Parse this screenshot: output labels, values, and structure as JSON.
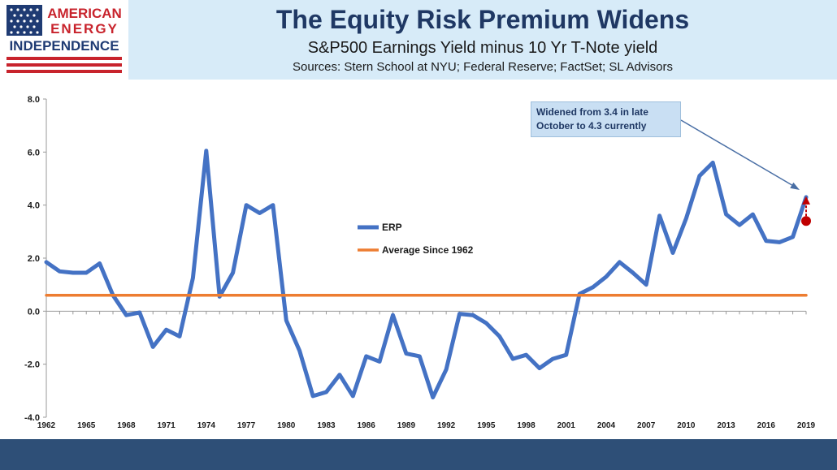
{
  "logo": {
    "line1": "AMERICAN",
    "line2": "ENERGY",
    "line3": "INDEPENDENCE",
    "flag_colors": {
      "blue": "#1f3b73",
      "red": "#c8232c"
    }
  },
  "header": {
    "title": "The Equity Risk Premium Widens",
    "subtitle": "S&P500 Earnings Yield minus 10 Yr T-Note yield",
    "sources": "Sources: Stern School at NYU; Federal Reserve; FactSet; SL Advisors"
  },
  "annotation": {
    "text": "Widened from 3.4 in late October to 4.3 currently"
  },
  "chart_data": {
    "type": "line",
    "x": [
      1962,
      1963,
      1964,
      1965,
      1966,
      1967,
      1968,
      1969,
      1970,
      1971,
      1972,
      1973,
      1974,
      1975,
      1976,
      1977,
      1978,
      1979,
      1980,
      1981,
      1982,
      1983,
      1984,
      1985,
      1986,
      1987,
      1988,
      1989,
      1990,
      1991,
      1992,
      1993,
      1994,
      1995,
      1996,
      1997,
      1998,
      1999,
      2000,
      2001,
      2002,
      2003,
      2004,
      2005,
      2006,
      2007,
      2008,
      2009,
      2010,
      2011,
      2012,
      2013,
      2014,
      2015,
      2016,
      2017,
      2018,
      2019
    ],
    "series": [
      {
        "name": "ERP",
        "color": "#4472c4",
        "values": [
          1.85,
          1.5,
          1.45,
          1.45,
          1.8,
          0.6,
          -0.15,
          -0.05,
          -1.35,
          -0.7,
          -0.95,
          1.25,
          6.05,
          0.55,
          1.45,
          4.0,
          3.7,
          4.0,
          -0.35,
          -1.5,
          -3.2,
          -3.05,
          -2.4,
          -3.2,
          -1.7,
          -1.9,
          -0.15,
          -1.6,
          -1.7,
          -3.25,
          -2.2,
          -0.1,
          -0.15,
          -0.45,
          -0.95,
          -1.8,
          -1.65,
          -2.15,
          -1.8,
          -1.65,
          0.65,
          0.9,
          1.3,
          1.85,
          1.45,
          1.0,
          3.6,
          2.2,
          3.5,
          5.1,
          5.6,
          3.65,
          3.25,
          3.65,
          2.65,
          2.6,
          2.8,
          4.3
        ]
      },
      {
        "name": "Average Since 1962",
        "color": "#ed7d31",
        "values": [
          0.6,
          0.6,
          0.6,
          0.6,
          0.6,
          0.6,
          0.6,
          0.6,
          0.6,
          0.6,
          0.6,
          0.6,
          0.6,
          0.6,
          0.6,
          0.6,
          0.6,
          0.6,
          0.6,
          0.6,
          0.6,
          0.6,
          0.6,
          0.6,
          0.6,
          0.6,
          0.6,
          0.6,
          0.6,
          0.6,
          0.6,
          0.6,
          0.6,
          0.6,
          0.6,
          0.6,
          0.6,
          0.6,
          0.6,
          0.6,
          0.6,
          0.6,
          0.6,
          0.6,
          0.6,
          0.6,
          0.6,
          0.6,
          0.6,
          0.6,
          0.6,
          0.6,
          0.6,
          0.6,
          0.6,
          0.6,
          0.6,
          0.6
        ]
      }
    ],
    "x_ticks": [
      "1962",
      "1965",
      "1968",
      "1971",
      "1974",
      "1977",
      "1980",
      "1983",
      "1986",
      "1989",
      "1992",
      "1995",
      "1998",
      "2001",
      "2004",
      "2007",
      "2010",
      "2013",
      "2016",
      "2019"
    ],
    "y_ticks": [
      "8.0",
      "6.0",
      "4.0",
      "2.0",
      "0.0",
      "-2.0",
      "-4.0"
    ],
    "ylim": [
      -4,
      8
    ],
    "xlim": [
      1962,
      2019
    ],
    "late_october_marker": {
      "x": 2019,
      "y": 3.4,
      "color": "#c00000"
    },
    "legend_placement": "center-left",
    "grid": false
  },
  "footer": {
    "color": "#2e4f77"
  }
}
